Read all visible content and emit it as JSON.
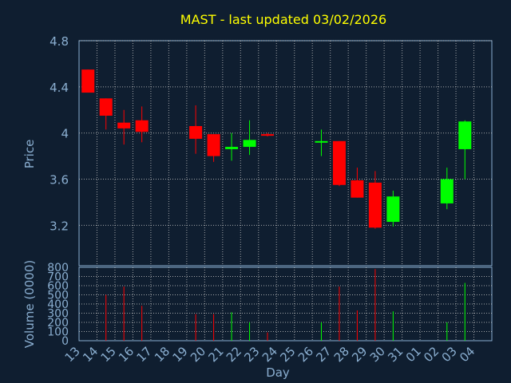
{
  "chart_data": {
    "type": "candlestick",
    "title": "MAST - last updated 03/02/2026",
    "xlabel": "Day",
    "ylabel_price": "Price",
    "ylabel_volume": "Volume (0000)",
    "x_ticks": [
      "13",
      "14",
      "15",
      "16",
      "17",
      "18",
      "19",
      "20",
      "21",
      "22",
      "23",
      "24",
      "25",
      "26",
      "27",
      "28",
      "29",
      "30",
      "31",
      "01",
      "02",
      "03",
      "04"
    ],
    "price_ticks": [
      "3.2",
      "3.6",
      "4",
      "4.4",
      "4.8"
    ],
    "price_tick_values": [
      3.2,
      3.6,
      4.0,
      4.4,
      4.8
    ],
    "price_range": [
      2.85,
      4.8
    ],
    "volume_ticks": [
      "0",
      "100",
      "200",
      "300",
      "400",
      "500",
      "600",
      "700",
      "800"
    ],
    "volume_tick_values": [
      0,
      100,
      200,
      300,
      400,
      500,
      600,
      700,
      800
    ],
    "volume_range": [
      0,
      800
    ],
    "grid": true,
    "colors": {
      "up": "#00ff00",
      "down": "#ff0000",
      "background": "#0f1e30",
      "plot": "#0f1e30",
      "grid": "#c8c8c8",
      "text": "#8aaed0",
      "title": "#ffff00"
    },
    "candles": [
      {
        "day": "13",
        "open": 4.55,
        "high": 4.55,
        "low": 4.35,
        "close": 4.35,
        "volume": 0
      },
      {
        "day": "14",
        "open": 4.3,
        "high": 4.3,
        "low": 4.03,
        "close": 4.15,
        "volume": 500
      },
      {
        "day": "15",
        "open": 4.09,
        "high": 4.2,
        "low": 3.9,
        "close": 4.04,
        "volume": 590
      },
      {
        "day": "16",
        "open": 4.11,
        "high": 4.23,
        "low": 3.92,
        "close": 4.01,
        "volume": 380
      },
      {
        "day": "19",
        "open": 4.06,
        "high": 4.24,
        "low": 3.82,
        "close": 3.95,
        "volume": 290
      },
      {
        "day": "20",
        "open": 3.99,
        "high": 3.99,
        "low": 3.75,
        "close": 3.8,
        "volume": 290
      },
      {
        "day": "21",
        "open": 3.86,
        "high": 4.0,
        "low": 3.76,
        "close": 3.88,
        "volume": 310
      },
      {
        "day": "22",
        "open": 3.88,
        "high": 4.11,
        "low": 3.81,
        "close": 3.94,
        "volume": 200
      },
      {
        "day": "23",
        "open": 3.99,
        "high": 4.0,
        "low": 3.97,
        "close": 3.98,
        "volume": 90
      },
      {
        "day": "26",
        "open": 3.92,
        "high": 4.03,
        "low": 3.8,
        "close": 3.93,
        "volume": 200
      },
      {
        "day": "27",
        "open": 3.93,
        "high": 3.93,
        "low": 3.54,
        "close": 3.55,
        "volume": 590
      },
      {
        "day": "28",
        "open": 3.59,
        "high": 3.7,
        "low": 3.44,
        "close": 3.44,
        "volume": 330
      },
      {
        "day": "29",
        "open": 3.57,
        "high": 3.67,
        "low": 3.17,
        "close": 3.18,
        "volume": 780
      },
      {
        "day": "30",
        "open": 3.23,
        "high": 3.5,
        "low": 3.19,
        "close": 3.45,
        "volume": 320
      },
      {
        "day": "02",
        "open": 3.39,
        "high": 3.7,
        "low": 3.34,
        "close": 3.6,
        "volume": 200
      },
      {
        "day": "03",
        "open": 3.86,
        "high": 4.11,
        "low": 3.6,
        "close": 4.1,
        "volume": 630
      }
    ]
  }
}
